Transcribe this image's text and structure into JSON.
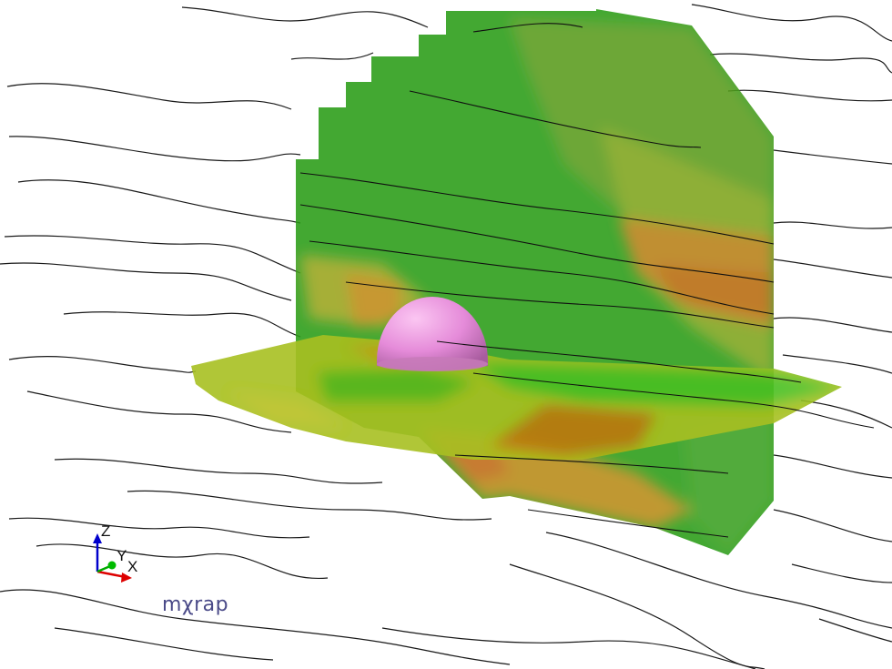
{
  "viewer": {
    "brand": "mχrap",
    "axes": {
      "z": "Z",
      "y": "Y",
      "x": "X"
    },
    "colors": {
      "background": "#ffffff",
      "streamline": "#1a1a1a",
      "obstacle": "#e58bd9",
      "axis_z": "#0000cc",
      "axis_y": "#00aa00",
      "axis_x": "#dd0000",
      "field_low": "#2a9d18",
      "field_mid": "#a8c020",
      "field_high": "#c07810"
    }
  }
}
